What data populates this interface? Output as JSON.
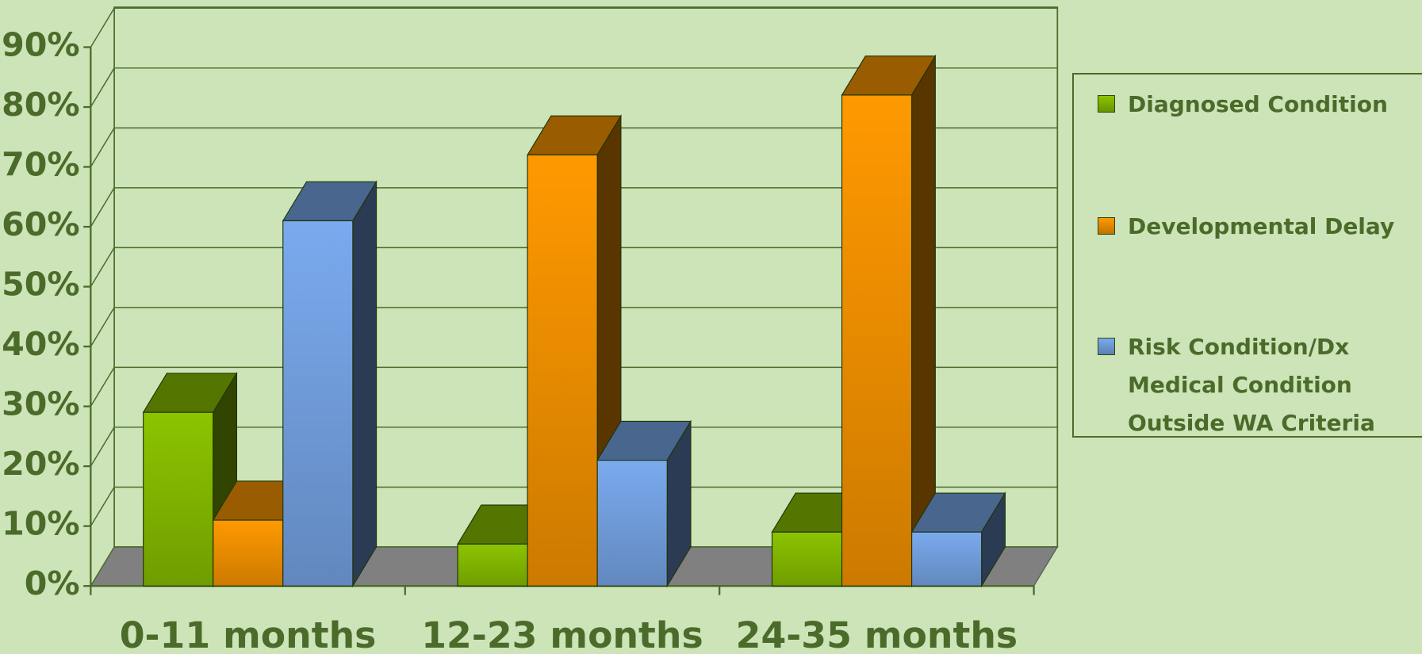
{
  "chart_data": {
    "type": "bar3d",
    "categories": [
      "0-11 months",
      "12-23 months",
      "24-35 months"
    ],
    "series": [
      {
        "name": "Diagnosed Condition",
        "color": "#8cc400",
        "values": [
          29,
          7,
          9
        ]
      },
      {
        "name": "Developmental Delay",
        "color": "#ff9900",
        "values": [
          11,
          72,
          82
        ]
      },
      {
        "name": "Risk Condition/Dx Medical Condition Outside WA Criteria",
        "color": "#7aaaee",
        "values": [
          61,
          21,
          9
        ]
      }
    ],
    "ylim": [
      0,
      90
    ],
    "yticks": [
      {
        "value": 0,
        "label": "0%"
      },
      {
        "value": 10,
        "label": "10%"
      },
      {
        "value": 20,
        "label": "20%"
      },
      {
        "value": 30,
        "label": "30%"
      },
      {
        "value": 40,
        "label": "40%"
      },
      {
        "value": 50,
        "label": "50%"
      },
      {
        "value": 60,
        "label": "60%"
      },
      {
        "value": 70,
        "label": "70%"
      },
      {
        "value": 80,
        "label": "80%"
      },
      {
        "value": 90,
        "label": "90%"
      }
    ],
    "grid": true,
    "legend": "right"
  }
}
